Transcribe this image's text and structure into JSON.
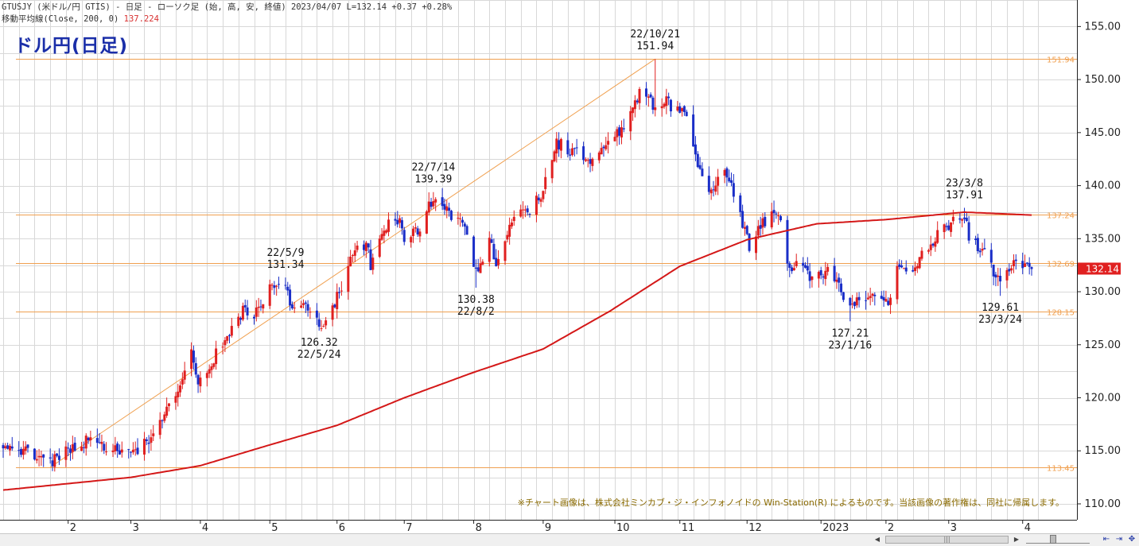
{
  "header": {
    "line1": "GTUSJY (米ドル/円 GTIS) - 日足 - ローソク足 (始, 高, 安, 終値)  2023/04/07 L=132.14 +0.37  +0.28%",
    "line2_label": "移動平均線(Close, 200, 0)",
    "line2_value": "137.224"
  },
  "big_title": "ドル円(日足)",
  "colors": {
    "up_candle": "#e02020",
    "down_candle": "#1a2ec8",
    "ma_line": "#d41818",
    "hline": "#f0a050",
    "grid": "#d8d8d8",
    "price_tag_bg": "#e02020"
  },
  "chart_data": {
    "type": "candlestick",
    "title": "ドル円(日足)",
    "ylim": [
      108.5,
      157.5
    ],
    "yticks": [
      110,
      115,
      120,
      125,
      130,
      135,
      140,
      145,
      150,
      155
    ],
    "ytick_labels": [
      "110.00",
      "115.00",
      "120.00",
      "125.00",
      "130.00",
      "135.00",
      "140.00",
      "145.00",
      "150.00",
      "155.00"
    ],
    "x_month_labels": [
      "2",
      "3",
      "4",
      "5",
      "6",
      "7",
      "8",
      "9",
      "10",
      "11",
      "12",
      "2023",
      "2",
      "3",
      "4"
    ],
    "close_anchors": [
      {
        "date": "2022-01-10",
        "value": 115.2
      },
      {
        "date": "2022-01-24",
        "value": 113.9
      },
      {
        "date": "2022-02-03",
        "value": 115.2
      },
      {
        "date": "2022-02-10",
        "value": 116.1
      },
      {
        "date": "2022-02-24",
        "value": 114.8
      },
      {
        "date": "2022-03-04",
        "value": 115.0
      },
      {
        "date": "2022-03-10",
        "value": 116.2
      },
      {
        "date": "2022-03-18",
        "value": 119.2
      },
      {
        "date": "2022-03-25",
        "value": 122.0
      },
      {
        "date": "2022-03-28",
        "value": 124.2
      },
      {
        "date": "2022-03-31",
        "value": 121.5
      },
      {
        "date": "2022-04-07",
        "value": 123.8
      },
      {
        "date": "2022-04-20",
        "value": 128.2
      },
      {
        "date": "2022-04-27",
        "value": 128.0
      },
      {
        "date": "2022-05-02",
        "value": 130.1
      },
      {
        "date": "2022-05-09",
        "value": 130.9
      },
      {
        "date": "2022-05-12",
        "value": 128.3
      },
      {
        "date": "2022-05-17",
        "value": 129.5
      },
      {
        "date": "2022-05-24",
        "value": 126.8
      },
      {
        "date": "2022-05-27",
        "value": 127.1
      },
      {
        "date": "2022-06-02",
        "value": 130.0
      },
      {
        "date": "2022-06-08",
        "value": 133.6
      },
      {
        "date": "2022-06-15",
        "value": 134.4
      },
      {
        "date": "2022-06-16",
        "value": 132.2
      },
      {
        "date": "2022-06-22",
        "value": 136.2
      },
      {
        "date": "2022-06-29",
        "value": 136.5
      },
      {
        "date": "2022-07-01",
        "value": 135.2
      },
      {
        "date": "2022-07-08",
        "value": 136.1
      },
      {
        "date": "2022-07-14",
        "value": 138.9
      },
      {
        "date": "2022-07-21",
        "value": 137.4
      },
      {
        "date": "2022-07-27",
        "value": 136.5
      },
      {
        "date": "2022-08-02",
        "value": 131.6
      },
      {
        "date": "2022-08-08",
        "value": 134.9
      },
      {
        "date": "2022-08-11",
        "value": 133.0
      },
      {
        "date": "2022-08-19",
        "value": 136.9
      },
      {
        "date": "2022-08-26",
        "value": 137.5
      },
      {
        "date": "2022-09-01",
        "value": 139.6
      },
      {
        "date": "2022-09-07",
        "value": 144.0
      },
      {
        "date": "2022-09-14",
        "value": 143.3
      },
      {
        "date": "2022-09-22",
        "value": 142.4
      },
      {
        "date": "2022-09-30",
        "value": 144.7
      },
      {
        "date": "2022-10-07",
        "value": 145.3
      },
      {
        "date": "2022-10-14",
        "value": 148.7
      },
      {
        "date": "2022-10-21",
        "value": 147.6
      },
      {
        "date": "2022-10-25",
        "value": 148.0
      },
      {
        "date": "2022-10-28",
        "value": 147.5
      },
      {
        "date": "2022-11-04",
        "value": 146.6
      },
      {
        "date": "2022-11-10",
        "value": 141.0
      },
      {
        "date": "2022-11-15",
        "value": 139.3
      },
      {
        "date": "2022-11-21",
        "value": 142.0
      },
      {
        "date": "2022-11-25",
        "value": 139.2
      },
      {
        "date": "2022-12-02",
        "value": 134.3
      },
      {
        "date": "2022-12-08",
        "value": 136.6
      },
      {
        "date": "2022-12-15",
        "value": 137.7
      },
      {
        "date": "2022-12-20",
        "value": 131.8
      },
      {
        "date": "2022-12-23",
        "value": 132.7
      },
      {
        "date": "2022-12-30",
        "value": 131.2
      },
      {
        "date": "2023-01-06",
        "value": 132.1
      },
      {
        "date": "2023-01-16",
        "value": 128.6
      },
      {
        "date": "2023-01-20",
        "value": 129.5
      },
      {
        "date": "2023-01-27",
        "value": 129.9
      },
      {
        "date": "2023-02-02",
        "value": 128.6
      },
      {
        "date": "2023-02-06",
        "value": 132.4
      },
      {
        "date": "2023-02-13",
        "value": 132.4
      },
      {
        "date": "2023-02-20",
        "value": 134.3
      },
      {
        "date": "2023-02-28",
        "value": 136.2
      },
      {
        "date": "2023-03-08",
        "value": 137.2
      },
      {
        "date": "2023-03-10",
        "value": 135.0
      },
      {
        "date": "2023-03-15",
        "value": 134.2
      },
      {
        "date": "2023-03-24",
        "value": 130.7
      },
      {
        "date": "2023-03-29",
        "value": 132.6
      },
      {
        "date": "2023-04-03",
        "value": 132.5
      },
      {
        "date": "2023-04-07",
        "value": 132.14
      }
    ],
    "ma200_anchors": [
      {
        "date": "2022-01-03",
        "value": 111.3
      },
      {
        "date": "2022-03-01",
        "value": 112.5
      },
      {
        "date": "2022-04-01",
        "value": 113.6
      },
      {
        "date": "2022-05-01",
        "value": 115.5
      },
      {
        "date": "2022-06-01",
        "value": 117.4
      },
      {
        "date": "2022-07-01",
        "value": 120.0
      },
      {
        "date": "2022-08-01",
        "value": 122.4
      },
      {
        "date": "2022-09-01",
        "value": 124.6
      },
      {
        "date": "2022-10-01",
        "value": 128.2
      },
      {
        "date": "2022-11-01",
        "value": 132.4
      },
      {
        "date": "2022-12-01",
        "value": 134.9
      },
      {
        "date": "2023-01-01",
        "value": 136.4
      },
      {
        "date": "2023-02-01",
        "value": 136.8
      },
      {
        "date": "2023-03-08",
        "value": 137.5
      },
      {
        "date": "2023-04-07",
        "value": 137.224
      }
    ],
    "hlines": [
      {
        "value": 151.94,
        "label": "151.94"
      },
      {
        "value": 137.24,
        "label": "137.24"
      },
      {
        "value": 132.69,
        "label": "132.69"
      },
      {
        "value": 128.15,
        "label": "128.15"
      },
      {
        "value": 113.45,
        "label": "113.45"
      }
    ],
    "trendline": {
      "from": {
        "date": "2022-01-24",
        "value": 113.45
      },
      "to": {
        "date": "2022-10-21",
        "value": 151.94
      }
    },
    "last_price": {
      "value": 132.14,
      "label": "132.14"
    },
    "annotations": [
      {
        "date": "2022-05-09",
        "value": 131.34,
        "date_text": "22/5/9",
        "price_text": "131.34",
        "position": "above"
      },
      {
        "date": "2022-05-24",
        "value": 126.32,
        "date_text": "22/5/24",
        "price_text": "126.32",
        "position": "below"
      },
      {
        "date": "2022-07-14",
        "value": 139.39,
        "date_text": "22/7/14",
        "price_text": "139.39",
        "position": "above"
      },
      {
        "date": "2022-08-02",
        "value": 130.38,
        "date_text": "22/8/2",
        "price_text": "130.38",
        "position": "below"
      },
      {
        "date": "2022-10-21",
        "value": 151.94,
        "date_text": "22/10/21",
        "price_text": "151.94",
        "position": "above"
      },
      {
        "date": "2023-01-16",
        "value": 127.21,
        "date_text": "23/1/16",
        "price_text": "127.21",
        "position": "below"
      },
      {
        "date": "2023-03-08",
        "value": 137.91,
        "date_text": "23/3/8",
        "price_text": "137.91",
        "position": "above"
      },
      {
        "date": "2023-03-24",
        "value": 129.61,
        "date_text": "23/3/24",
        "price_text": "129.61",
        "position": "below"
      }
    ],
    "start_date": "2022-01-03",
    "end_date": "2023-04-07",
    "copyright": "※チャート画像は、株式会社ミンカブ・ジ・インフォノイドの Win-Station(R) によるものです。当該画像の著作権は、同社に帰属します。"
  }
}
